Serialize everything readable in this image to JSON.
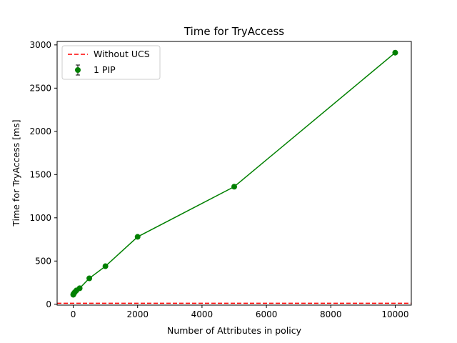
{
  "chart_data": {
    "type": "line",
    "title": "Time for TryAccess",
    "xlabel": "Number of Attributes in policy",
    "ylabel": "Time for TryAccess [ms]",
    "xlim": [
      -500,
      10500
    ],
    "ylim": [
      -10,
      3040
    ],
    "xticks": [
      0,
      2000,
      4000,
      6000,
      8000,
      10000
    ],
    "yticks": [
      0,
      500,
      1000,
      1500,
      2000,
      2500,
      3000
    ],
    "grid": false,
    "legend_position": "top-left",
    "series": [
      {
        "name": "1 PIP",
        "kind": "line-with-markers-errorbars",
        "color": "#008000",
        "x": [
          1,
          5,
          10,
          20,
          50,
          100,
          200,
          500,
          1000,
          2000,
          5000,
          10000
        ],
        "y": [
          110,
          115,
          120,
          125,
          140,
          160,
          185,
          300,
          440,
          780,
          1360,
          2910
        ]
      }
    ],
    "reference_lines": [
      {
        "name": "Without UCS",
        "orientation": "horizontal",
        "value": 12,
        "color": "#ff0000",
        "style": "dashed"
      }
    ]
  }
}
